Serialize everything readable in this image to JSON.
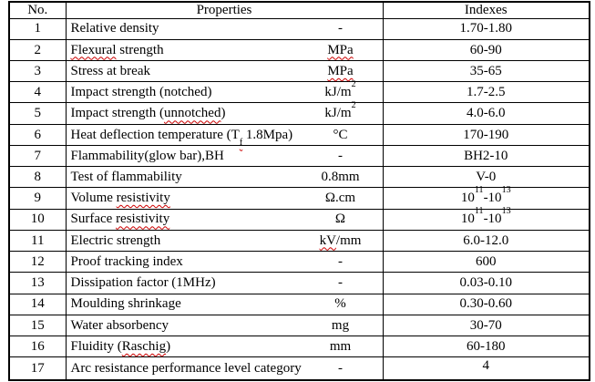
{
  "colors": {
    "page_background": "#ffffff",
    "border": "#000000",
    "text": "#000000",
    "spellcheck_squiggle": "#cc0000"
  },
  "table": {
    "header": {
      "no": "No.",
      "properties": "Properties",
      "indexes": "Indexes"
    },
    "rows": [
      {
        "no": "1",
        "property": [
          {
            "t": "Relative density"
          }
        ],
        "unit": [
          {
            "t": "-"
          }
        ],
        "index": [
          {
            "t": "1.70-1.80"
          }
        ]
      },
      {
        "no": "2",
        "property": [
          {
            "t": "Flexural",
            "sq": true
          },
          {
            "t": " strength"
          }
        ],
        "unit": [
          {
            "t": "MPa",
            "sq": true
          }
        ],
        "index": [
          {
            "t": "60-90"
          }
        ]
      },
      {
        "no": "3",
        "property": [
          {
            "t": "Stress at break"
          }
        ],
        "unit": [
          {
            "t": "MPa",
            "sq": true
          }
        ],
        "index": [
          {
            "t": "35-65"
          }
        ]
      },
      {
        "no": "4",
        "property": [
          {
            "t": "Impact strength (notched)"
          }
        ],
        "unit": [
          {
            "t": "kJ/m"
          },
          {
            "t": "2",
            "sup": true
          }
        ],
        "index": [
          {
            "t": "1.7-2.5"
          }
        ]
      },
      {
        "no": "5",
        "property": [
          {
            "t": "Impact strength ("
          },
          {
            "t": "unnotched",
            "sq": true
          },
          {
            "t": ")"
          }
        ],
        "unit": [
          {
            "t": "kJ/m"
          },
          {
            "t": "2",
            "sup": true
          }
        ],
        "index": [
          {
            "t": "4.0-6.0"
          }
        ]
      },
      {
        "no": "6",
        "property": [
          {
            "t": "Heat deflection temperature (T"
          },
          {
            "t": "f",
            "sub": true,
            "sq": true
          },
          {
            "t": " 1.8Mpa)"
          }
        ],
        "unit": [
          {
            "t": "°C"
          }
        ],
        "index": [
          {
            "t": "170-190"
          }
        ]
      },
      {
        "no": "7",
        "property": [
          {
            "t": "Flammability(glow bar),BH"
          }
        ],
        "unit": [
          {
            "t": "-"
          }
        ],
        "index": [
          {
            "t": "BH2-10"
          }
        ]
      },
      {
        "no": "8",
        "property": [
          {
            "t": "Test of flammability"
          }
        ],
        "unit": [
          {
            "t": "0.8mm"
          }
        ],
        "index": [
          {
            "t": "V-0"
          }
        ]
      },
      {
        "no": "9",
        "property": [
          {
            "t": "Volume "
          },
          {
            "t": "resistivity",
            "sq": true
          }
        ],
        "unit": [
          {
            "t": "Ω.cm"
          }
        ],
        "index": [
          {
            "t": "10"
          },
          {
            "t": "11",
            "sup": true
          },
          {
            "t": "-10"
          },
          {
            "t": "13",
            "sup": true
          }
        ]
      },
      {
        "no": "10",
        "property": [
          {
            "t": "Surface "
          },
          {
            "t": "resistivity",
            "sq": true
          }
        ],
        "unit": [
          {
            "t": "Ω"
          }
        ],
        "index": [
          {
            "t": "10"
          },
          {
            "t": "11",
            "sup": true
          },
          {
            "t": "-10"
          },
          {
            "t": "13",
            "sup": true
          }
        ]
      },
      {
        "no": "11",
        "property": [
          {
            "t": "Electric strength"
          }
        ],
        "unit": [
          {
            "t": "kV",
            "sq": true
          },
          {
            "t": "/mm"
          }
        ],
        "index": [
          {
            "t": "6.0-12.0"
          }
        ]
      },
      {
        "no": "12",
        "property": [
          {
            "t": "Proof tracking index"
          }
        ],
        "unit": [
          {
            "t": "-"
          }
        ],
        "index": [
          {
            "t": "600"
          }
        ]
      },
      {
        "no": "13",
        "property": [
          {
            "t": "Dissipation factor (1MHz)"
          }
        ],
        "unit": [
          {
            "t": "-"
          }
        ],
        "index": [
          {
            "t": "0.03-0.10"
          }
        ]
      },
      {
        "no": "14",
        "property": [
          {
            "t": "Moulding shrinkage"
          }
        ],
        "unit": [
          {
            "t": "%"
          }
        ],
        "index": [
          {
            "t": "0.30-0.60"
          }
        ]
      },
      {
        "no": "15",
        "property": [
          {
            "t": "Water absorbency"
          }
        ],
        "unit": [
          {
            "t": "mg"
          }
        ],
        "index": [
          {
            "t": "30-70"
          }
        ]
      },
      {
        "no": "16",
        "property": [
          {
            "t": "Fluidity ("
          },
          {
            "t": "Raschig",
            "sq": true
          },
          {
            "t": ")"
          }
        ],
        "unit": [
          {
            "t": "mm"
          }
        ],
        "index": [
          {
            "t": "60-180"
          }
        ]
      },
      {
        "no": "17",
        "property": [
          {
            "t": "Arc resistance performance level category"
          }
        ],
        "unit": [
          {
            "t": "-"
          }
        ],
        "index": [
          {
            "t": "4"
          }
        ],
        "index_align": "top"
      }
    ]
  }
}
